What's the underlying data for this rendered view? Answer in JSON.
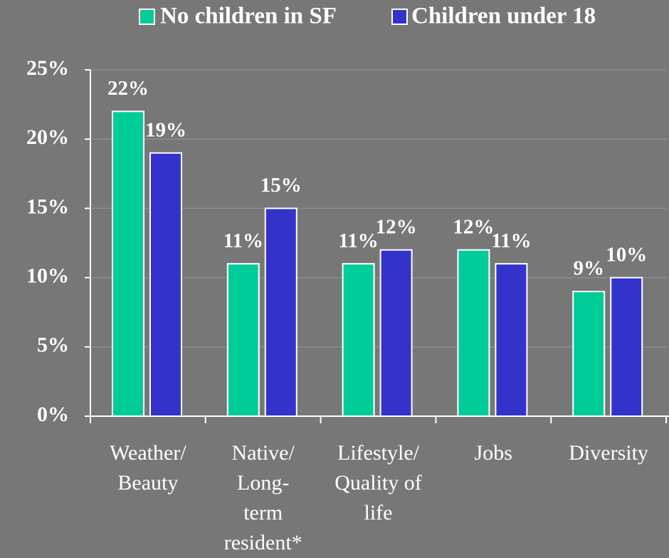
{
  "chart_data": {
    "type": "bar",
    "categories": [
      "Weather/\nBeauty",
      "Native/\nLong-\nterm\nresident*",
      "Lifestyle/\nQuality of\nlife",
      "Jobs",
      "Diversity"
    ],
    "series": [
      {
        "name": "No children in SF",
        "color": "#00cc99",
        "values": [
          22,
          11,
          11,
          12,
          9
        ],
        "value_labels": [
          "22%",
          "11%",
          "11%",
          "12%",
          "9%"
        ]
      },
      {
        "name": "Children under 18",
        "color": "#3333cc",
        "values": [
          19,
          15,
          12,
          11,
          10
        ],
        "value_labels": [
          "19%",
          "15%",
          "12%",
          "11%",
          "10%"
        ]
      }
    ],
    "ylim": [
      0,
      25
    ],
    "yticks": [
      {
        "value": 0,
        "label": "0%"
      },
      {
        "value": 5,
        "label": "5%"
      },
      {
        "value": 10,
        "label": "10%"
      },
      {
        "value": 15,
        "label": "15%"
      },
      {
        "value": 20,
        "label": "20%"
      },
      {
        "value": 25,
        "label": "25%"
      }
    ],
    "grid": true,
    "legend": "top"
  }
}
